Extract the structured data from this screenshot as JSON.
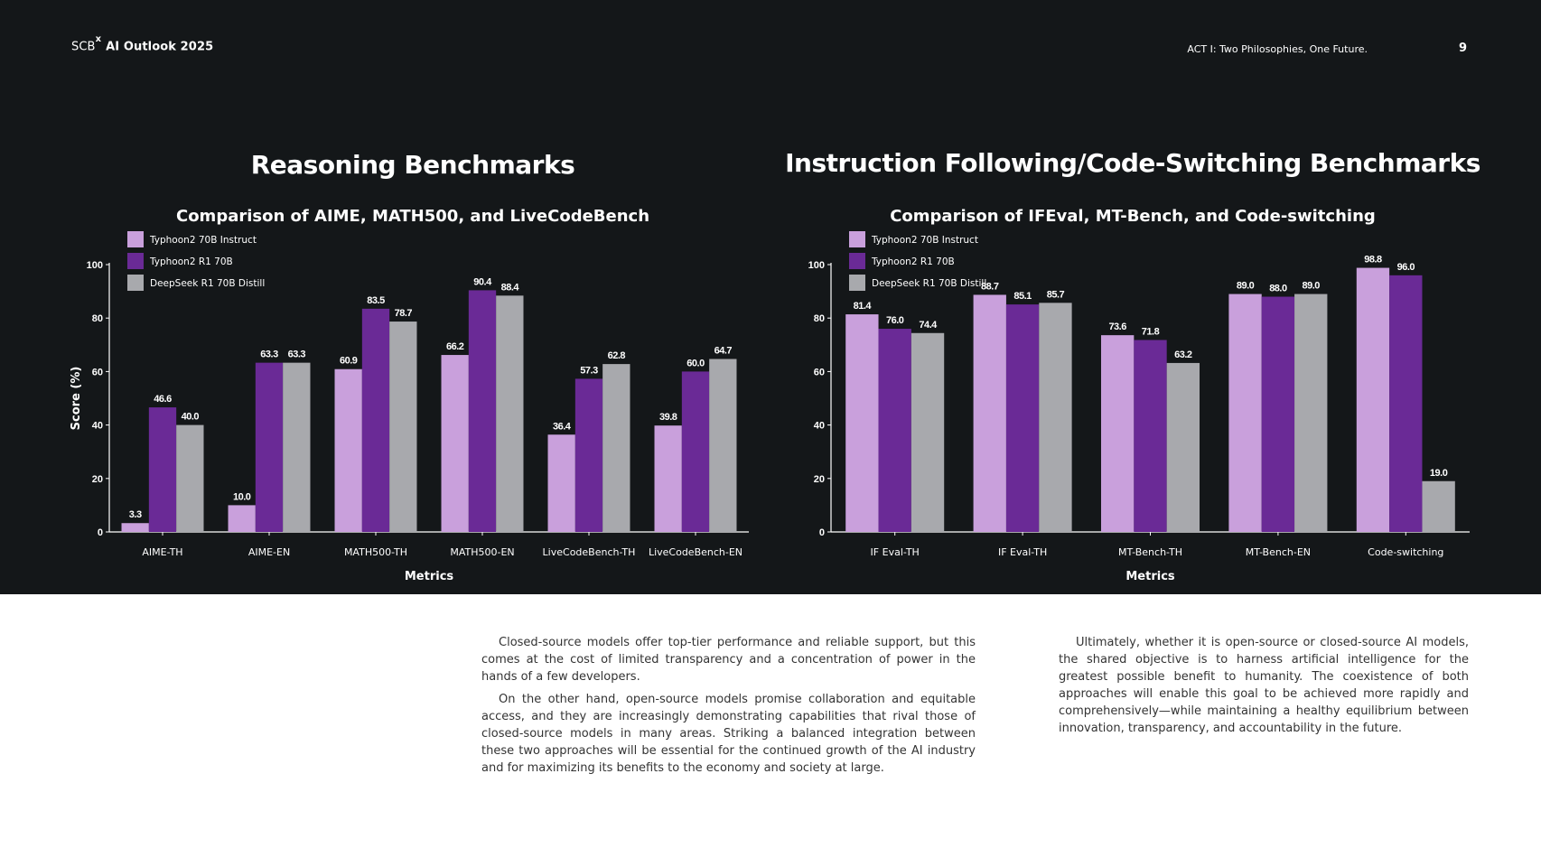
{
  "header": {
    "brand_prefix": "SCB",
    "brand_mark": "x",
    "brand_title": "AI Outlook 2025",
    "section": "ACT I: Two Philosophies, One Future.",
    "page_number": "9"
  },
  "panels": {
    "left_title": "Reasoning Benchmarks",
    "right_title": "Instruction Following/Code-Switching Benchmarks"
  },
  "colors": {
    "series": [
      "#c9a0dc",
      "#6a2a96",
      "#a8a9ad"
    ],
    "background": "#141719",
    "text": "#ffffff"
  },
  "chart_data": [
    {
      "type": "bar",
      "title": "Comparison of AIME, MATH500, and LiveCodeBench",
      "xlabel": "Metrics",
      "ylabel": "Score (%)",
      "ylim": [
        0,
        100
      ],
      "yticks": [
        0,
        20,
        40,
        60,
        80,
        100
      ],
      "legend_position": "top-left",
      "grid": false,
      "categories": [
        "AIME-TH",
        "AIME-EN",
        "MATH500-TH",
        "MATH500-EN",
        "LiveCodeBench-TH",
        "LiveCodeBench-EN"
      ],
      "series": [
        {
          "name": "Typhoon2 70B Instruct",
          "values": [
            3.3,
            10.0,
            60.9,
            66.2,
            36.4,
            39.8
          ]
        },
        {
          "name": "Typhoon2 R1 70B",
          "values": [
            46.6,
            63.3,
            83.5,
            90.4,
            57.3,
            60.0
          ]
        },
        {
          "name": "DeepSeek R1 70B Distill",
          "values": [
            40.0,
            63.3,
            78.7,
            88.4,
            62.8,
            64.7
          ]
        }
      ]
    },
    {
      "type": "bar",
      "title": "Comparison of IFEval, MT-Bench, and Code-switching",
      "xlabel": "Metrics",
      "ylabel": "",
      "ylim": [
        0,
        100
      ],
      "yticks": [
        0,
        20,
        40,
        60,
        80,
        100
      ],
      "legend_position": "top-left",
      "grid": false,
      "categories": [
        "IF Eval-TH",
        "IF Eval-TH",
        "MT-Bench-TH",
        "MT-Bench-EN",
        "Code-switching"
      ],
      "series": [
        {
          "name": "Typhoon2 70B Instruct",
          "values": [
            81.4,
            88.7,
            73.6,
            89.0,
            98.8
          ]
        },
        {
          "name": "Typhoon2 R1 70B",
          "values": [
            76.0,
            85.1,
            71.8,
            88.0,
            96.0
          ]
        },
        {
          "name": "DeepSeek R1 70B Distill",
          "values": [
            74.4,
            85.7,
            63.2,
            89.0,
            19.0
          ]
        }
      ]
    }
  ],
  "body": {
    "col1_p1": "Closed-source models offer top-tier performance and reliable support, but this comes at the cost of limited transparency and a concentration of power in the hands of a few developers.",
    "col1_p2": "On the other hand, open-source models promise collaboration and equitable access, and they are increasingly demonstrating capabilities that rival those of closed-source models in many areas. Striking a balanced integration between these two approaches will be essential for the continued growth of the AI industry and for maximizing its benefits to the economy and society at large.",
    "col2_p1": "Ultimately, whether it is open-source or closed-source AI models, the shared objective is to harness artificial intelligence for the greatest possible benefit to humanity. The coexistence of both approaches will enable this goal to be achieved more rapidly and comprehensively—while maintaining a healthy equilibrium between innovation, transparency, and accountability in the future."
  }
}
